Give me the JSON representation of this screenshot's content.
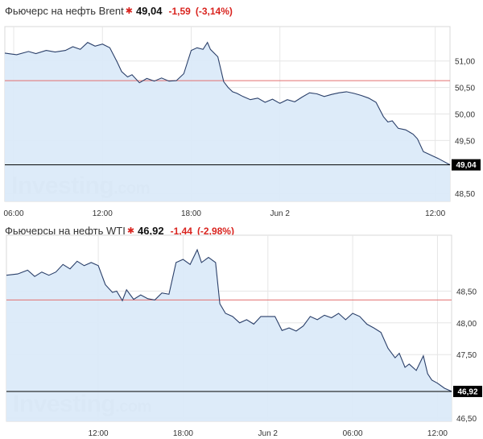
{
  "chart_data": [
    {
      "type": "area",
      "instrument": "Фьючерс на нефть Brent",
      "price": "49,04",
      "change": "-1,59",
      "change_pct": "(-3,14%)",
      "last_label": "49,04",
      "x_ticks": [
        "06:00",
        "12:00",
        "18:00",
        "Jun 2",
        "12:00"
      ],
      "x_tick_positions": [
        0.0,
        6.0,
        12.0,
        18.0,
        28.5
      ],
      "y_ticks": [
        "51,00",
        "50,50",
        "50,00",
        "49,50",
        "48,50"
      ],
      "y_tick_values": [
        51.0,
        50.5,
        50.0,
        49.5,
        48.5
      ],
      "ylim": [
        48.35,
        51.65
      ],
      "xlim": [
        -0.6,
        29.5
      ],
      "previous_close": 50.63,
      "last_value": 49.04,
      "x": [
        -0.6,
        0.2,
        1.0,
        1.5,
        2.2,
        2.8,
        3.5,
        4.0,
        4.5,
        5.0,
        5.5,
        6.0,
        6.5,
        7.0,
        7.3,
        7.7,
        8.0,
        8.5,
        9.0,
        9.5,
        10.0,
        10.5,
        11.0,
        11.5,
        12.0,
        12.4,
        12.8,
        13.1,
        13.3,
        13.8,
        14.2,
        14.5,
        14.8,
        15.1,
        15.5,
        16.0,
        16.5,
        17.0,
        17.5,
        18.0,
        18.5,
        19.0,
        19.5,
        20.0,
        20.5,
        21.0,
        21.5,
        22.0,
        22.5,
        23.0,
        23.5,
        24.0,
        24.5,
        25.0,
        25.3,
        25.6,
        26.0,
        26.5,
        27.0,
        27.3,
        27.7,
        28.0,
        28.3,
        28.7,
        29.1,
        29.5
      ],
      "y": [
        51.15,
        51.12,
        51.18,
        51.14,
        51.2,
        51.17,
        51.2,
        51.27,
        51.22,
        51.35,
        51.28,
        51.32,
        51.25,
        50.98,
        50.8,
        50.7,
        50.74,
        50.59,
        50.67,
        50.62,
        50.68,
        50.62,
        50.63,
        50.76,
        51.2,
        51.25,
        51.22,
        51.35,
        51.22,
        51.08,
        50.61,
        50.5,
        50.42,
        50.39,
        50.33,
        50.27,
        50.3,
        50.22,
        50.28,
        50.2,
        50.27,
        50.23,
        50.32,
        50.4,
        50.38,
        50.33,
        50.37,
        50.4,
        50.42,
        50.39,
        50.35,
        50.3,
        50.22,
        49.95,
        49.85,
        49.87,
        49.73,
        49.7,
        49.62,
        49.53,
        49.29,
        49.25,
        49.21,
        49.16,
        49.1,
        49.04
      ]
    },
    {
      "type": "area",
      "instrument": "Фьючерсы на нефть WTI",
      "price": "46,92",
      "change": "-1,44",
      "change_pct": "(-2,98%)",
      "last_label": "46,92",
      "x_ticks": [
        "12:00",
        "18:00",
        "Jun 2",
        "06:00",
        "12:00"
      ],
      "x_tick_positions": [
        6.0,
        12.0,
        18.0,
        24.0,
        30.0
      ],
      "y_ticks": [
        "48,50",
        "48,00",
        "47,50",
        "46,50"
      ],
      "y_tick_values": [
        48.5,
        48.0,
        47.5,
        46.5
      ],
      "ylim": [
        46.45,
        49.38
      ],
      "xlim": [
        -0.5,
        31.0
      ],
      "previous_close": 48.36,
      "last_value": 46.92,
      "x": [
        -0.5,
        0.3,
        1.0,
        1.5,
        2.0,
        2.5,
        3.0,
        3.5,
        4.0,
        4.5,
        5.0,
        5.5,
        6.0,
        6.5,
        7.0,
        7.3,
        7.7,
        8.0,
        8.5,
        9.0,
        9.5,
        10.0,
        10.5,
        11.0,
        11.5,
        12.0,
        12.5,
        13.0,
        13.3,
        13.8,
        14.3,
        14.6,
        15.0,
        15.5,
        16.0,
        16.5,
        17.0,
        17.5,
        18.0,
        18.5,
        19.0,
        19.5,
        20.0,
        20.5,
        21.0,
        21.5,
        22.0,
        22.5,
        23.0,
        23.5,
        24.0,
        24.5,
        25.0,
        25.5,
        26.0,
        26.5,
        27.0,
        27.3,
        27.7,
        28.0,
        28.5,
        29.0,
        29.3,
        29.6,
        30.0,
        30.5,
        31.0
      ],
      "y": [
        48.75,
        48.77,
        48.83,
        48.73,
        48.8,
        48.75,
        48.8,
        48.92,
        48.85,
        48.97,
        48.9,
        48.95,
        48.9,
        48.6,
        48.48,
        48.5,
        48.35,
        48.52,
        48.37,
        48.44,
        48.38,
        48.36,
        48.47,
        48.45,
        48.95,
        49.0,
        48.92,
        49.15,
        48.95,
        49.03,
        48.95,
        48.3,
        48.15,
        48.1,
        48.0,
        48.05,
        47.98,
        48.1,
        48.1,
        48.1,
        47.88,
        47.92,
        47.87,
        47.95,
        48.1,
        48.05,
        48.12,
        48.08,
        48.15,
        48.05,
        48.15,
        48.1,
        47.98,
        47.92,
        47.85,
        47.6,
        47.45,
        47.52,
        47.3,
        47.35,
        47.25,
        47.48,
        47.2,
        47.1,
        47.05,
        46.97,
        46.92
      ]
    }
  ],
  "watermark": {
    "brand": "Investing",
    "suffix": ".com"
  },
  "colors": {
    "line": "#2a3f69",
    "fill": "#dbeaf9",
    "grid": "#e6e6e6",
    "prev_close": "#e36f6f",
    "last_line": "#000000",
    "negative": "#d9241f"
  }
}
